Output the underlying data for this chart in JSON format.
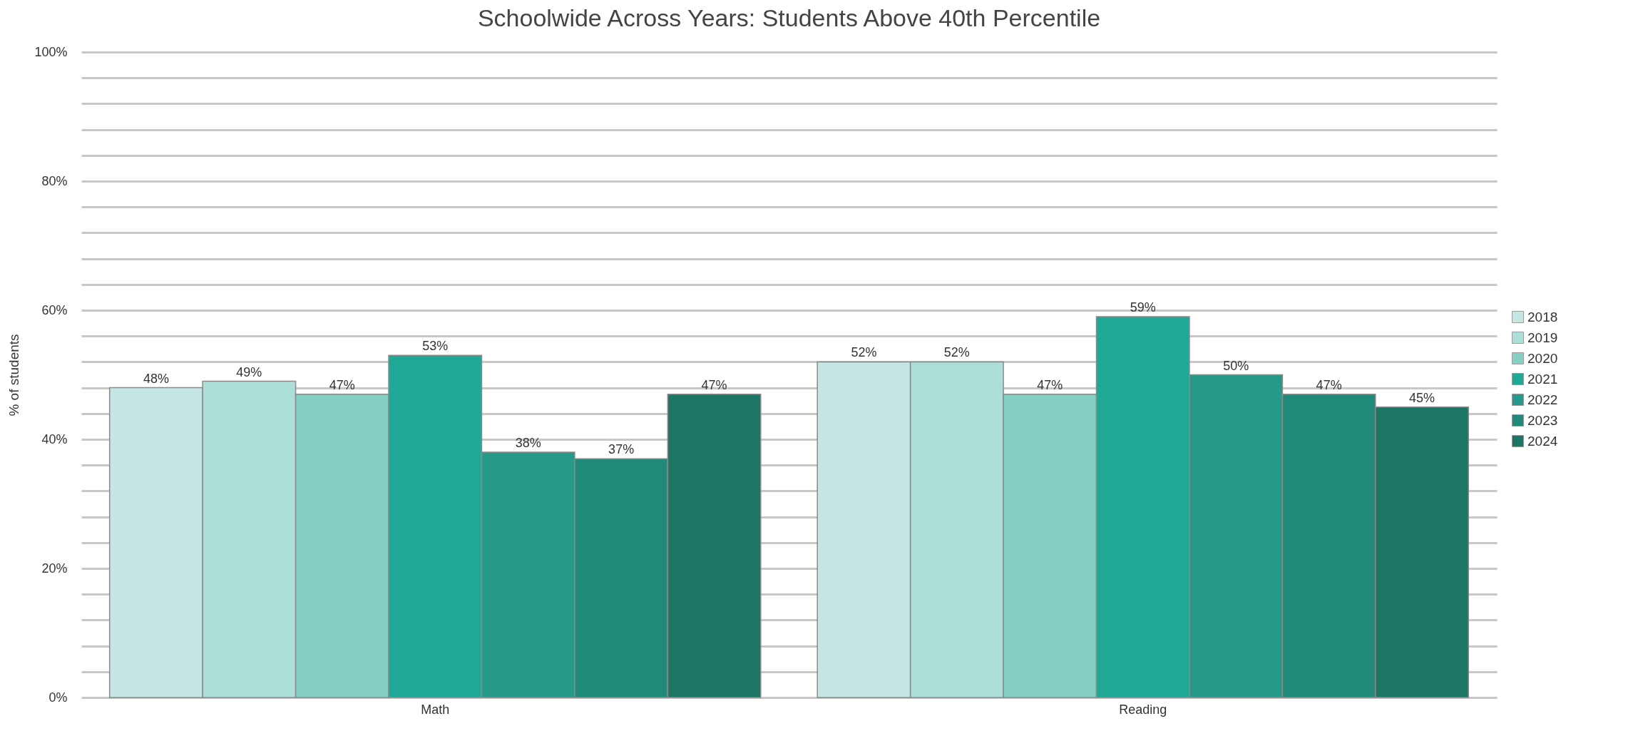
{
  "chart_data": {
    "type": "bar",
    "title": "Schoolwide Across Years: Students Above 40th Percentile",
    "ylabel": "% of students",
    "categories": [
      "Math",
      "Reading"
    ],
    "series": [
      {
        "name": "2018",
        "color": "#c5e6e2",
        "values": [
          48,
          52
        ],
        "value_labels": [
          "48%",
          "52%"
        ]
      },
      {
        "name": "2019",
        "color": "#acdfd8",
        "values": [
          49,
          52
        ],
        "value_labels": [
          "49%",
          "52%"
        ]
      },
      {
        "name": "2020",
        "color": "#85cfc4",
        "values": [
          47,
          47
        ],
        "value_labels": [
          "47%",
          "47%"
        ]
      },
      {
        "name": "2021",
        "color": "#1fa896",
        "values": [
          53,
          59
        ],
        "value_labels": [
          "53%",
          "59%"
        ]
      },
      {
        "name": "2022",
        "color": "#26998a",
        "values": [
          38,
          50
        ],
        "value_labels": [
          "38%",
          "50%"
        ]
      },
      {
        "name": "2023",
        "color": "#21897a",
        "values": [
          37,
          47
        ],
        "value_labels": [
          "37%",
          "47%"
        ]
      },
      {
        "name": "2024",
        "color": "#1d7566",
        "values": [
          47,
          45
        ],
        "value_labels": [
          "47%",
          "45%"
        ]
      }
    ],
    "ylim": [
      0,
      100
    ],
    "yticks": [
      {
        "value": 0,
        "label": "0%"
      },
      {
        "value": 4,
        "label": null
      },
      {
        "value": 8,
        "label": null
      },
      {
        "value": 12,
        "label": null
      },
      {
        "value": 16,
        "label": null
      },
      {
        "value": 20,
        "label": "20%"
      },
      {
        "value": 24,
        "label": null
      },
      {
        "value": 28,
        "label": null
      },
      {
        "value": 32,
        "label": null
      },
      {
        "value": 36,
        "label": null
      },
      {
        "value": 40,
        "label": "40%"
      },
      {
        "value": 44,
        "label": null
      },
      {
        "value": 48,
        "label": null
      },
      {
        "value": 52,
        "label": null
      },
      {
        "value": 56,
        "label": null
      },
      {
        "value": 60,
        "label": "60%"
      },
      {
        "value": 64,
        "label": null
      },
      {
        "value": 68,
        "label": null
      },
      {
        "value": 72,
        "label": null
      },
      {
        "value": 76,
        "label": null
      },
      {
        "value": 80,
        "label": "80%"
      },
      {
        "value": 84,
        "label": null
      },
      {
        "value": 88,
        "label": null
      },
      {
        "value": 92,
        "label": null
      },
      {
        "value": 96,
        "label": null
      },
      {
        "value": 100,
        "label": "100%"
      }
    ],
    "grid": true,
    "legend": "right"
  }
}
